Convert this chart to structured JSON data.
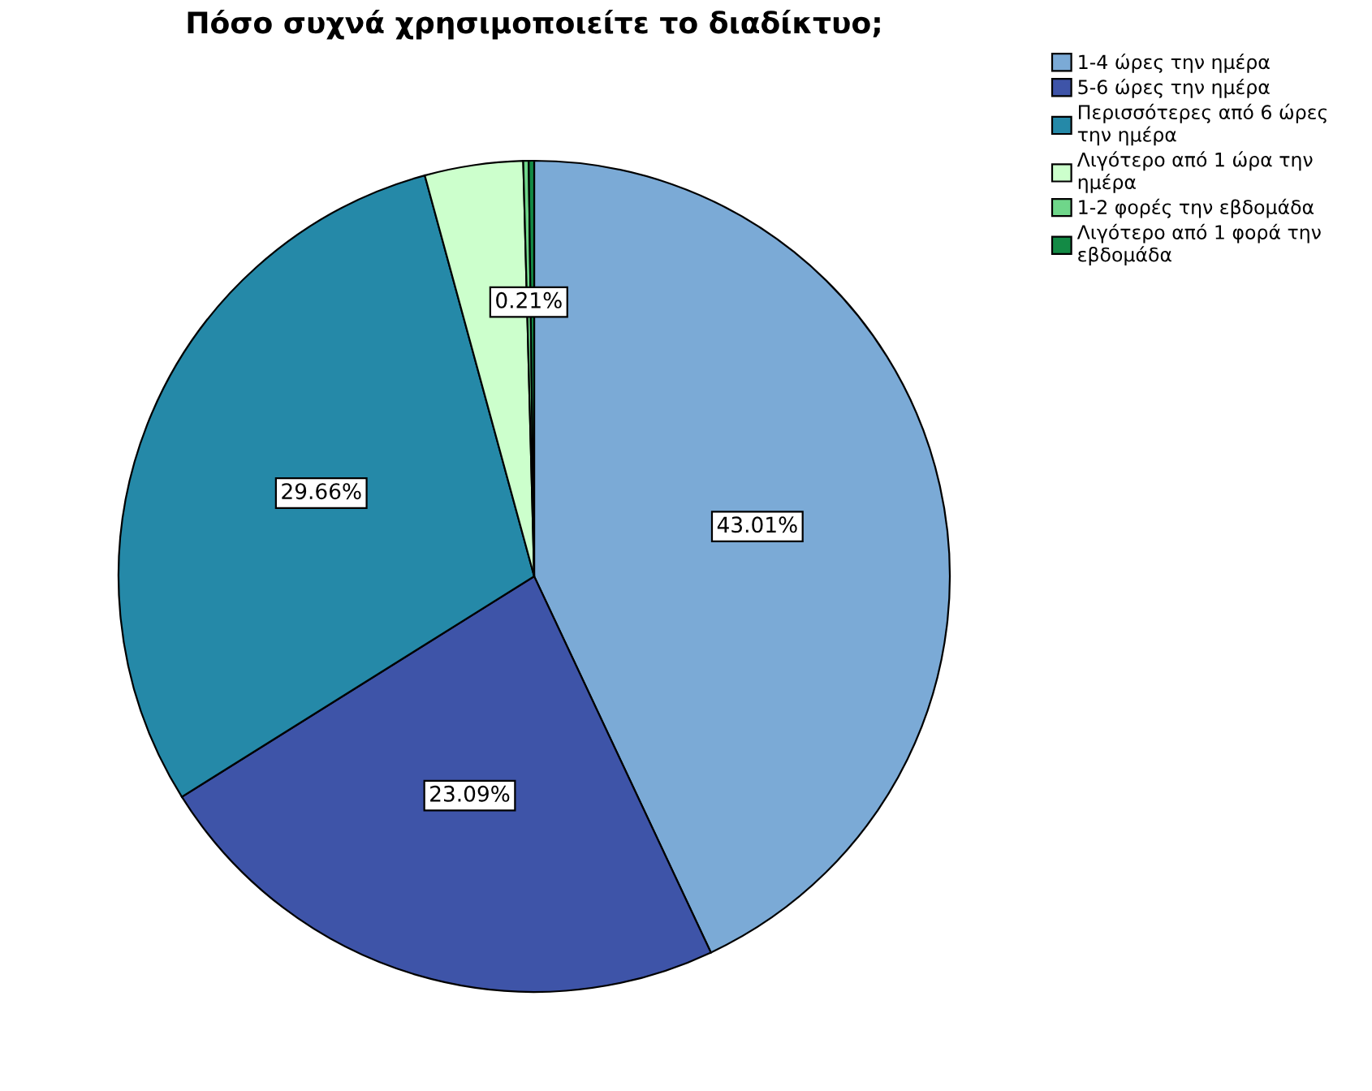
{
  "chart_data": {
    "type": "pie",
    "title": "Πόσο συχνά χρησιμοποιείτε το διαδίκτυο;",
    "categories": [
      "1-4 ώρες την ημέρα",
      "5-6 ώρες την ημέρα",
      "Περισσότερες από 6 ώρες την ημέρα",
      "Λιγότερο από 1 ώρα την ημέρα",
      "1-2 φορές την εβδομάδα",
      "Λιγότερο από 1 φορά την εβδομάδα"
    ],
    "values": [
      43.01,
      23.09,
      29.66,
      3.82,
      0.21,
      0.21
    ],
    "colors": [
      "#7baad6",
      "#3e54a8",
      "#2589a8",
      "#ccffcc",
      "#6fd68a",
      "#138a45"
    ],
    "value_labels": [
      "43.01%",
      "23.09%",
      "29.66%",
      null,
      "0.21%",
      null
    ],
    "legend": "top right"
  }
}
